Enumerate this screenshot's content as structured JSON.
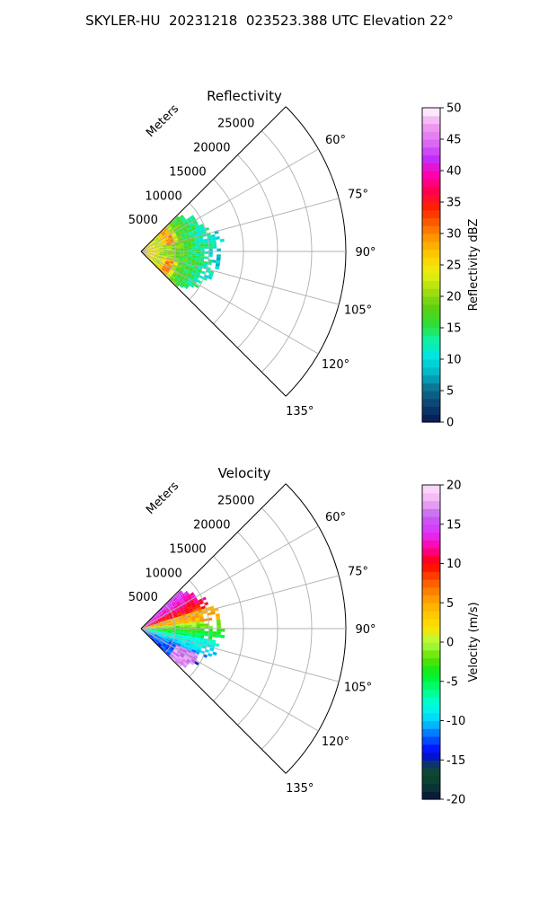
{
  "figure_title": "SKYLER-HU  20231218  023523.388 UTC Elevation 22°",
  "panels": [
    {
      "title": "Reflectivity",
      "range_axis_label": "Meters",
      "colorbar_label": "Reflectivity dBZ",
      "colorbar_ticks": [
        "0",
        "5",
        "10",
        "15",
        "20",
        "25",
        "30",
        "35",
        "40",
        "45",
        "50"
      ]
    },
    {
      "title": "Velocity",
      "range_axis_label": "Meters",
      "colorbar_label": "Velocity (m/s)",
      "colorbar_ticks": [
        "-20",
        "-15",
        "-10",
        "-5",
        "0",
        "5",
        "10",
        "15",
        "20"
      ]
    }
  ],
  "chart_data": [
    {
      "type": "heatmap",
      "subtype": "polar-sector (radar PPI)",
      "title": "Reflectivity",
      "field": "Reflectivity",
      "units": "dBZ",
      "azimuth_range_deg": [
        45,
        135
      ],
      "azimuth_ticks_deg": [
        60,
        75,
        90,
        105,
        120,
        135
      ],
      "range_max_m": 30000,
      "range_ticks_m": [
        5000,
        10000,
        15000,
        20000,
        25000
      ],
      "echo_max_range_m": 12000,
      "colorbar": {
        "min": 0,
        "max": 50,
        "ticks": [
          0,
          5,
          10,
          15,
          20,
          25,
          30,
          35,
          40,
          45,
          50
        ]
      },
      "colormap_stops": [
        "#0b1552",
        "#0a3f70",
        "#0e6e8e",
        "#00b8c8",
        "#00e5e0",
        "#10f0a0",
        "#30dd30",
        "#60d010",
        "#a8e010",
        "#e8f010",
        "#ffd000",
        "#ffa000",
        "#ff6000",
        "#ff2000",
        "#ff0050",
        "#ff00b0",
        "#c030ff",
        "#e070f0",
        "#f0a0f0",
        "#ffffff"
      ],
      "grid": true
    },
    {
      "type": "heatmap",
      "subtype": "polar-sector (radar PPI)",
      "title": "Velocity",
      "field": "Velocity",
      "units": "m/s",
      "azimuth_range_deg": [
        45,
        135
      ],
      "azimuth_ticks_deg": [
        60,
        75,
        90,
        105,
        120,
        135
      ],
      "range_max_m": 30000,
      "range_ticks_m": [
        5000,
        10000,
        15000,
        20000,
        25000
      ],
      "echo_max_range_m": 12000,
      "colorbar": {
        "min": -20,
        "max": 20,
        "ticks": [
          -20,
          -15,
          -10,
          -5,
          0,
          5,
          10,
          15,
          20
        ]
      },
      "colormap_stops": [
        "#0a1040",
        "#0a4030",
        "#104838",
        "#0000ff",
        "#0060ff",
        "#00d0ff",
        "#00ffe0",
        "#00ff80",
        "#00f020",
        "#60e000",
        "#b0ff40",
        "#ffe000",
        "#ffc000",
        "#ff9000",
        "#ff5000",
        "#ff0000",
        "#ff00a0",
        "#e030ff",
        "#c060f0",
        "#f0b0f0",
        "#ffe0ff"
      ],
      "grid": true
    }
  ]
}
